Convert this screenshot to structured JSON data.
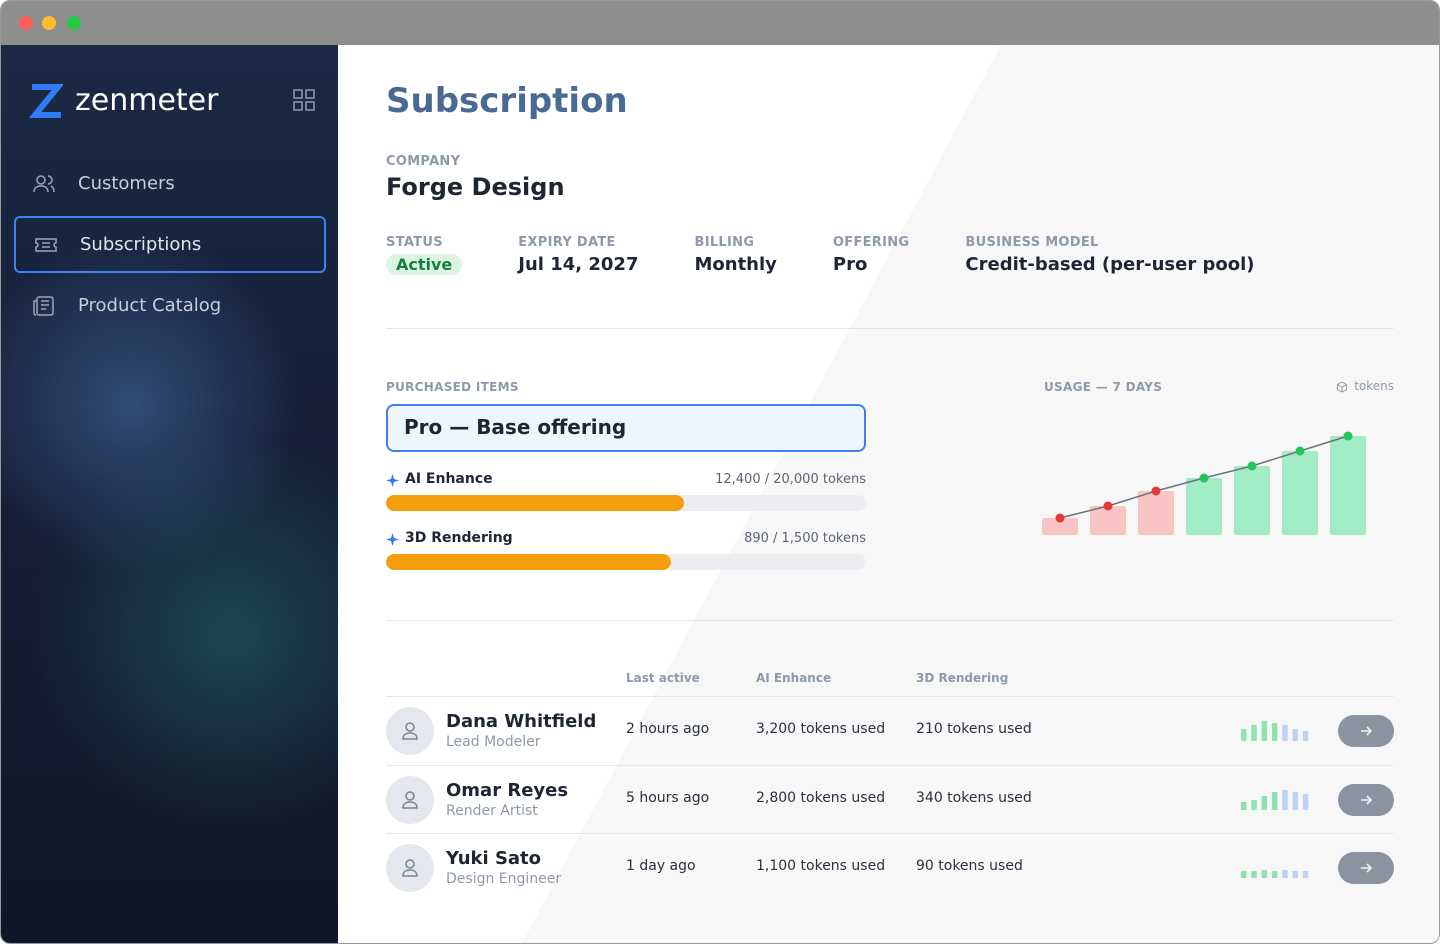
{
  "window": {
    "app_name": "zenmeter"
  },
  "sidebar": {
    "nav": [
      {
        "label": "Customers",
        "active": false
      },
      {
        "label": "Subscriptions",
        "active": true
      },
      {
        "label": "Product Catalog",
        "active": false
      }
    ]
  },
  "page": {
    "title": "Subscription",
    "company_label": "COMPANY",
    "company": "Forge Design",
    "fields": [
      {
        "label": "STATUS",
        "value": "Active"
      },
      {
        "label": "EXPIRY DATE",
        "value": "Jul 14, 2027"
      },
      {
        "label": "BILLING",
        "value": "Monthly"
      },
      {
        "label": "OFFERING",
        "value": "Pro"
      },
      {
        "label": "BUSINESS MODEL",
        "value": "Credit-based (per-user pool)"
      }
    ]
  },
  "purchased": {
    "label": "PURCHASED ITEMS",
    "offering": "Pro — Base offering",
    "items": [
      {
        "name": "AI Enhance",
        "used": 12400,
        "limit": 20000,
        "usage_label": "12,400 / 20,000 tokens"
      },
      {
        "name": "3D Rendering",
        "used": 890,
        "limit": 1500,
        "usage_label": "890 / 1,500 tokens"
      }
    ]
  },
  "usage_chart": {
    "title": "USAGE — 7 DAYS",
    "unit": "tokens",
    "values": [
      17,
      29,
      44,
      57,
      69,
      84,
      99
    ],
    "bar_colors": [
      "#f8c4c4",
      "#f8c4c4",
      "#f8c4c4",
      "#a3ebc4",
      "#a3ebc4",
      "#a3ebc4",
      "#a3ebc4"
    ],
    "dot_colors": [
      "#e53935",
      "#e53935",
      "#e53935",
      "#22c55e",
      "#22c55e",
      "#22c55e",
      "#22c55e"
    ]
  },
  "team": {
    "columns": [
      "Last active",
      "AI Enhance",
      "3D Rendering"
    ],
    "rows": [
      {
        "name": "Dana Whitfield",
        "role": "Lead Modeler",
        "last_active": "2 hours ago",
        "ai": "3,200 tokens used",
        "rendering": "210 tokens used",
        "activity": [
          12,
          16,
          20,
          18,
          16,
          12,
          10
        ]
      },
      {
        "name": "Omar Reyes",
        "role": "Render Artist",
        "last_active": "5 hours ago",
        "ai": "2,800 tokens used",
        "rendering": "340 tokens used",
        "activity": [
          8,
          10,
          14,
          18,
          20,
          18,
          16
        ]
      },
      {
        "name": "Yuki Sato",
        "role": "Design Engineer",
        "last_active": "1 day ago",
        "ai": "1,100 tokens used",
        "rendering": "90 tokens used",
        "activity": [
          7,
          7,
          8,
          7,
          8,
          7,
          7
        ]
      }
    ]
  }
}
